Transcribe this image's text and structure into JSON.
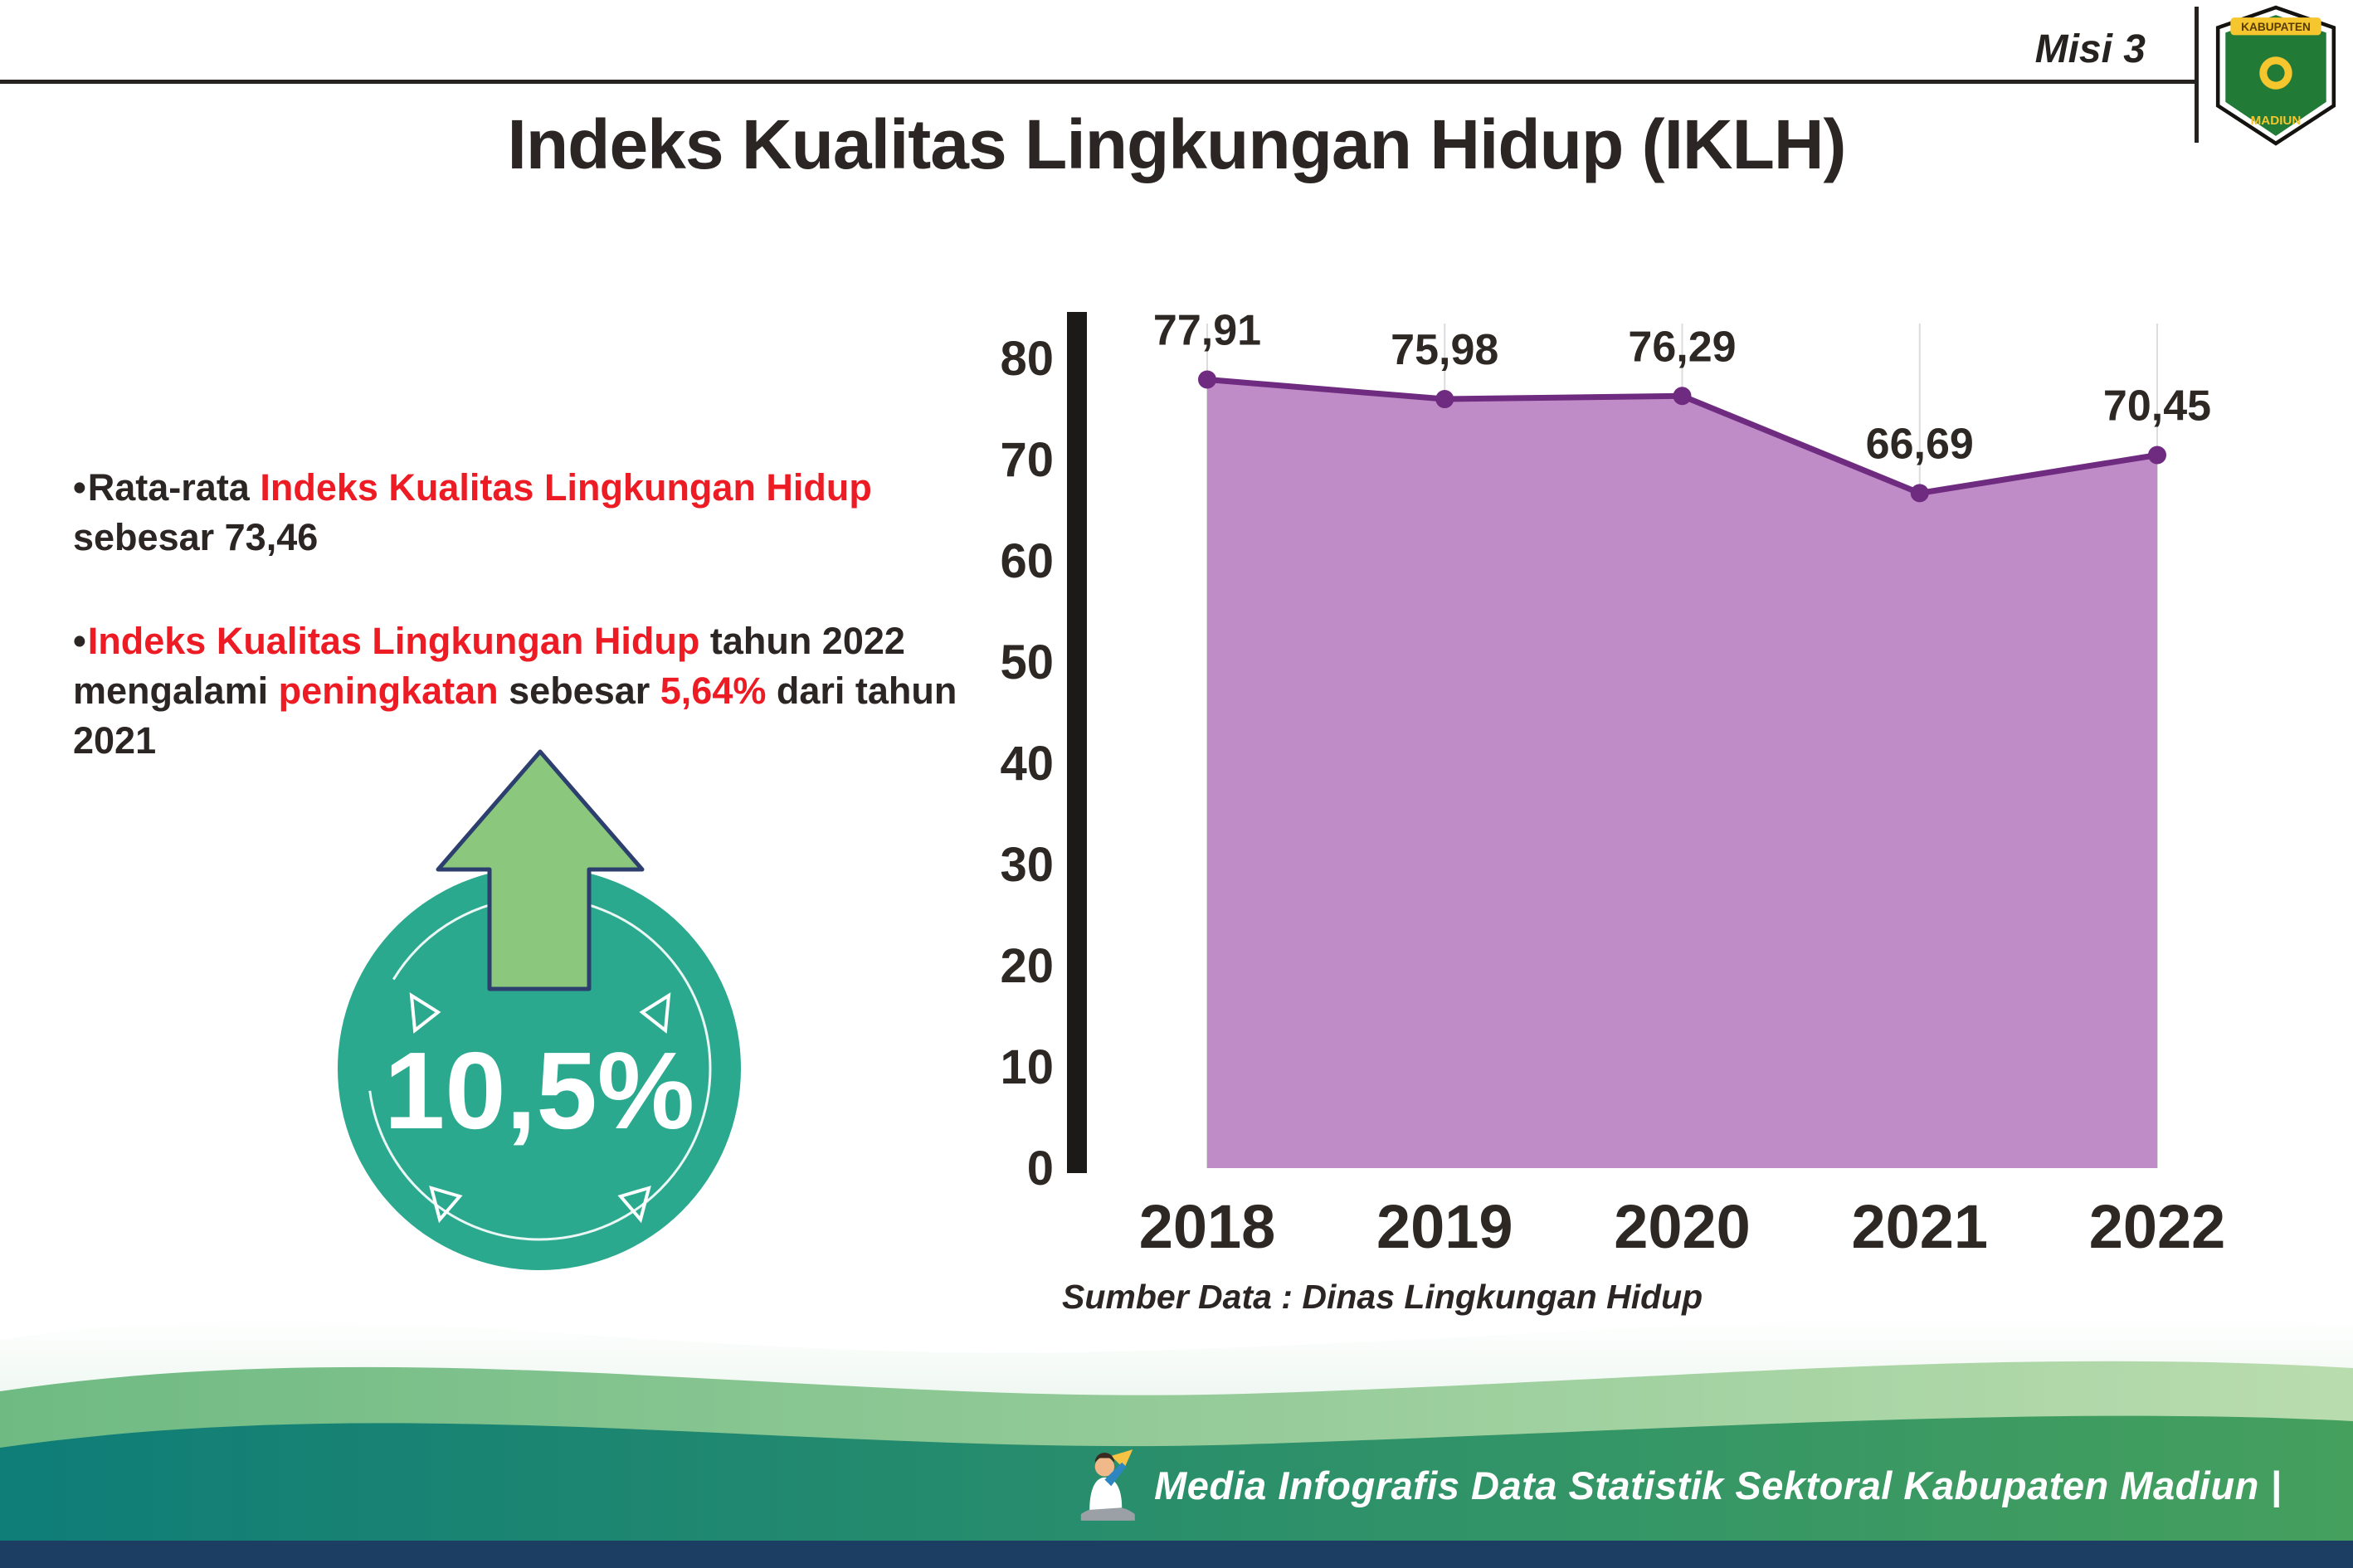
{
  "header": {
    "misi": "Misi 3",
    "logo_top": "KABUPATEN",
    "logo_bottom": "MADIUN"
  },
  "title": "Indeks Kualitas Lingkungan Hidup (IKLH)",
  "bullets": {
    "items": [
      {
        "segments": [
          {
            "t": "Rata-rata ",
            "c": "dark"
          },
          {
            "t": "Indeks Kualitas Lingkungan Hidup",
            "c": "red"
          },
          {
            "t": " sebesar 73,46",
            "c": "dark"
          }
        ]
      },
      {
        "segments": [
          {
            "t": "Indeks Kualitas Lingkungan Hidup",
            "c": "red"
          },
          {
            "t": " tahun 2022 mengalami ",
            "c": "dark"
          },
          {
            "t": "peningkatan",
            "c": "red"
          },
          {
            "t": " sebesar ",
            "c": "dark"
          },
          {
            "t": "5,64%",
            "c": "red"
          },
          {
            "t": " dari tahun 2021",
            "c": "dark"
          }
        ]
      }
    ]
  },
  "badge": {
    "value": "10,5%",
    "circle_color": "#2aa98e",
    "arrow_color": "#8bc77d"
  },
  "chart_data": {
    "type": "area",
    "title": "",
    "categories": [
      "2018",
      "2019",
      "2020",
      "2021",
      "2022"
    ],
    "values": [
      77.91,
      75.98,
      76.29,
      66.69,
      70.45
    ],
    "value_labels": [
      "77,91",
      "75,98",
      "76,29",
      "66,69",
      "70,45"
    ],
    "ylim": [
      0,
      80
    ],
    "yticks": [
      0,
      10,
      20,
      30,
      40,
      50,
      60,
      70,
      80
    ],
    "grid": "vertical-light",
    "legend": "none",
    "colors": {
      "area": "#bf8cc7",
      "line": "#6f2b80",
      "dot": "#6f2b80",
      "axis": "#1c1a19",
      "tick_text": "#2e2824",
      "gridline": "#dcdcdc"
    },
    "source": "Sumber Data : Dinas Lingkungan Hidup"
  },
  "footer": {
    "text": "Media Infografis Data Statistik Sektoral Kabupaten Madiun |"
  }
}
